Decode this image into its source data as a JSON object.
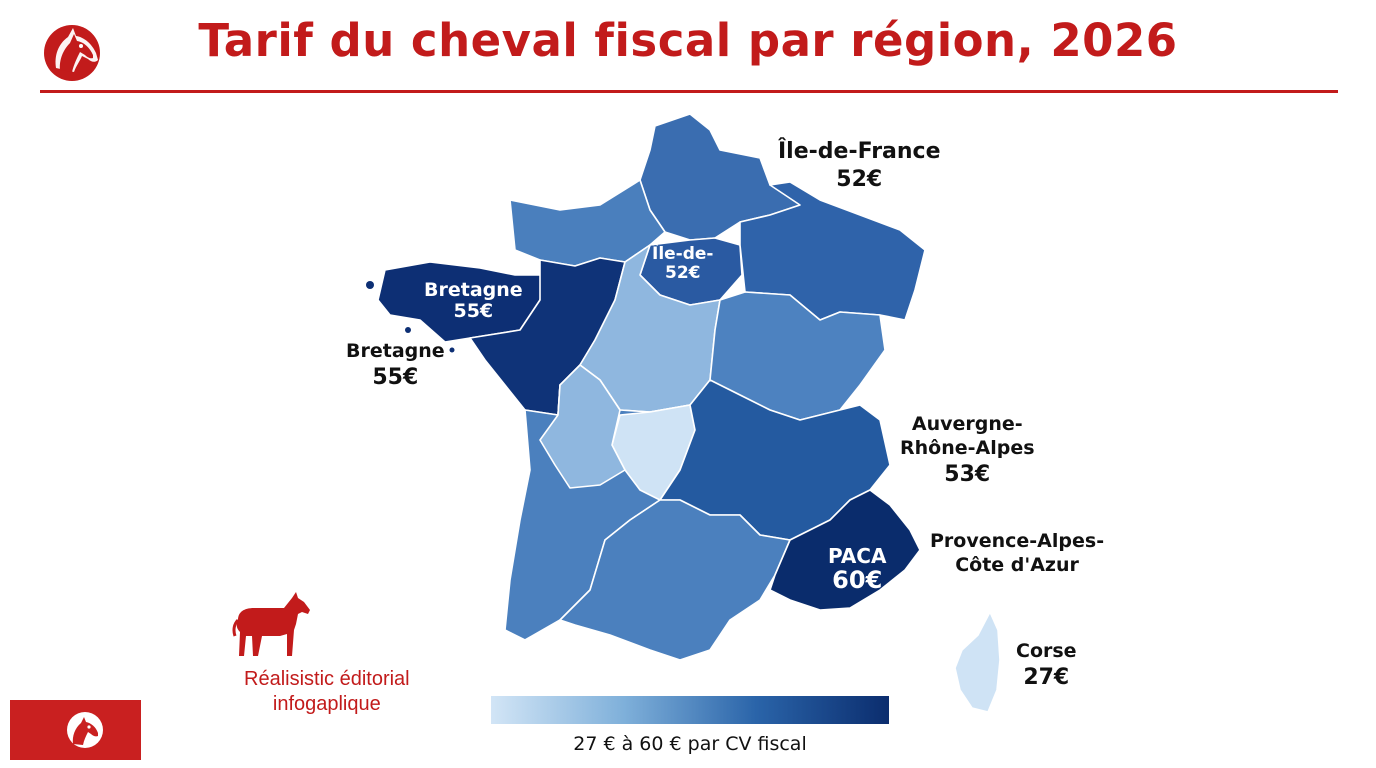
{
  "title": "Tarif du cheval fiscal par région, 2026",
  "labels": {
    "idf": {
      "name": "Île-de-France",
      "value": "52€"
    },
    "bretagne": {
      "name": "Bretagne",
      "value": "55€"
    },
    "aura": {
      "name_line1": "Auvergne-",
      "name_line2": "Rhône-Alpes",
      "value": "53€"
    },
    "paca": {
      "name_line1": "Provence-Alpes-",
      "name_line2": "Côte d'Azur"
    },
    "corse": {
      "name": "Corse",
      "value": "27€"
    }
  },
  "map_labels": {
    "idf": {
      "name": "Île-de-",
      "value": "52€"
    },
    "bretagne": {
      "name": "Bretagne",
      "value": "55€"
    },
    "paca": {
      "name": "PACA",
      "value": "60€"
    }
  },
  "regions": [
    {
      "id": "hauts-de-france",
      "color": "#3a6db0"
    },
    {
      "id": "normandie",
      "color": "#4a7fbd"
    },
    {
      "id": "ile-de-france",
      "color": "#2a5aa2"
    },
    {
      "id": "bretagne",
      "color": "#0d2f74"
    },
    {
      "id": "pays-de-la-loire",
      "color": "#0f3378"
    },
    {
      "id": "centre-val-de-loire",
      "color": "#8fb7df"
    },
    {
      "id": "grand-est",
      "color": "#2f63aa"
    },
    {
      "id": "bourgogne-franche-comte",
      "color": "#4d82c0"
    },
    {
      "id": "nouvelle-aquitaine",
      "color": "#4b80be"
    },
    {
      "id": "auvergne-rhone-alpes",
      "color": "#245aa0"
    },
    {
      "id": "occitanie",
      "color": "#4b80be"
    },
    {
      "id": "paca",
      "color": "#0a2c6c",
      "value": 60
    },
    {
      "id": "corse",
      "color": "#cfe3f5",
      "value": 27
    }
  ],
  "tagline": {
    "line1": "Réalisistic éditorial",
    "line2": "infogaplique"
  },
  "legend": {
    "text": "27 € à 60 € par CV fiscal",
    "min": 27,
    "max": 60,
    "color_min": "#d2e5f6",
    "color_max": "#0b2d6e"
  },
  "icons": {
    "top": "horse-head-icon",
    "side": "horse-icon",
    "badge": "horse-head-icon"
  },
  "accent_color": "#c21b1b"
}
